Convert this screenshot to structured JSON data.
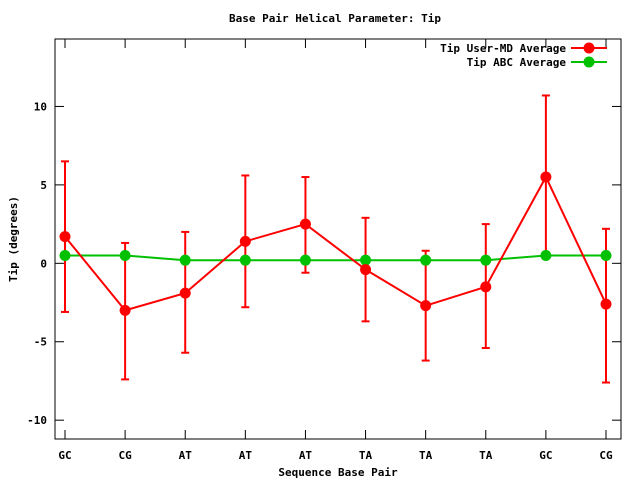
{
  "chart_data": {
    "type": "line",
    "title": "Base Pair Helical Parameter: Tip",
    "xlabel": "Sequence Base Pair",
    "ylabel": "Tip (degrees)",
    "categories": [
      "GC",
      "CG",
      "AT",
      "AT",
      "AT",
      "TA",
      "TA",
      "TA",
      "GC",
      "CG"
    ],
    "ylim": [
      -11.2,
      14.3
    ],
    "yticks": [
      -10,
      -5,
      0,
      5,
      10
    ],
    "ytick_labels": [
      "-10",
      "-5",
      "0",
      "5",
      "10"
    ],
    "legend_position": "top-right",
    "grid": false,
    "series": [
      {
        "name": "Tip User-MD Average",
        "color": "#ff0000",
        "values": [
          1.7,
          -3.0,
          -1.9,
          1.4,
          2.5,
          -0.4,
          -2.7,
          -1.5,
          5.5,
          -2.6
        ],
        "error_low": [
          -3.1,
          -7.4,
          -5.7,
          -2.8,
          -0.6,
          -3.7,
          -6.2,
          -5.4,
          0.4,
          -7.6
        ],
        "error_high": [
          6.5,
          1.3,
          2.0,
          5.6,
          5.5,
          2.9,
          0.8,
          2.5,
          10.7,
          2.2
        ]
      },
      {
        "name": "Tip ABC Average",
        "color": "#00c000",
        "values": [
          0.5,
          0.5,
          0.2,
          0.2,
          0.2,
          0.2,
          0.2,
          0.2,
          0.5,
          0.5
        ]
      }
    ]
  }
}
